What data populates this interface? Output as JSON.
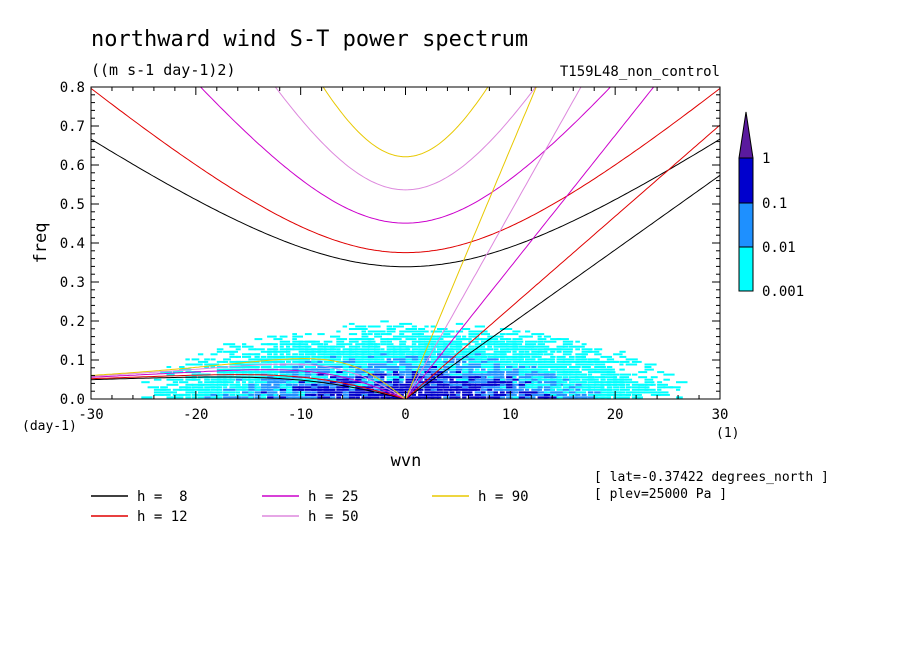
{
  "chart_data": {
    "type": "heatmap",
    "title": "northward wind S-T power spectrum",
    "units": "((m s-1 day-1)2)",
    "run_label": "T159L48_non_control",
    "xlabel": "wvn",
    "ylabel": "freq",
    "y_unit_label": "(day-1)",
    "x_unit_label": "(1)",
    "xlim": [
      -30,
      30
    ],
    "ylim": [
      0,
      0.8
    ],
    "x_ticks": [
      -30,
      -20,
      -10,
      0,
      10,
      20,
      30
    ],
    "y_ticks": [
      0.0,
      0.1,
      0.2,
      0.3,
      0.4,
      0.5,
      0.6,
      0.7,
      0.8
    ],
    "colorbar": {
      "levels": [
        "0.001",
        "0.01",
        "0.1",
        "1"
      ],
      "colors": [
        "#00ffff",
        "#1e90ff",
        "#0000cd",
        "#5a1a9e"
      ]
    },
    "series": [
      {
        "name": "h =  8",
        "h": 8,
        "color": "#000000"
      },
      {
        "name": "h = 12",
        "h": 12,
        "color": "#e00000"
      },
      {
        "name": "h = 25",
        "h": 25,
        "color": "#cc00cc"
      },
      {
        "name": "h = 50",
        "h": 50,
        "color": "#dd88dd"
      },
      {
        "name": "h = 90",
        "h": 90,
        "color": "#e8c800"
      }
    ],
    "annotations": [
      "[ lat=-0.37422 degrees_north ]",
      "[ plev=25000 Pa ]"
    ]
  }
}
